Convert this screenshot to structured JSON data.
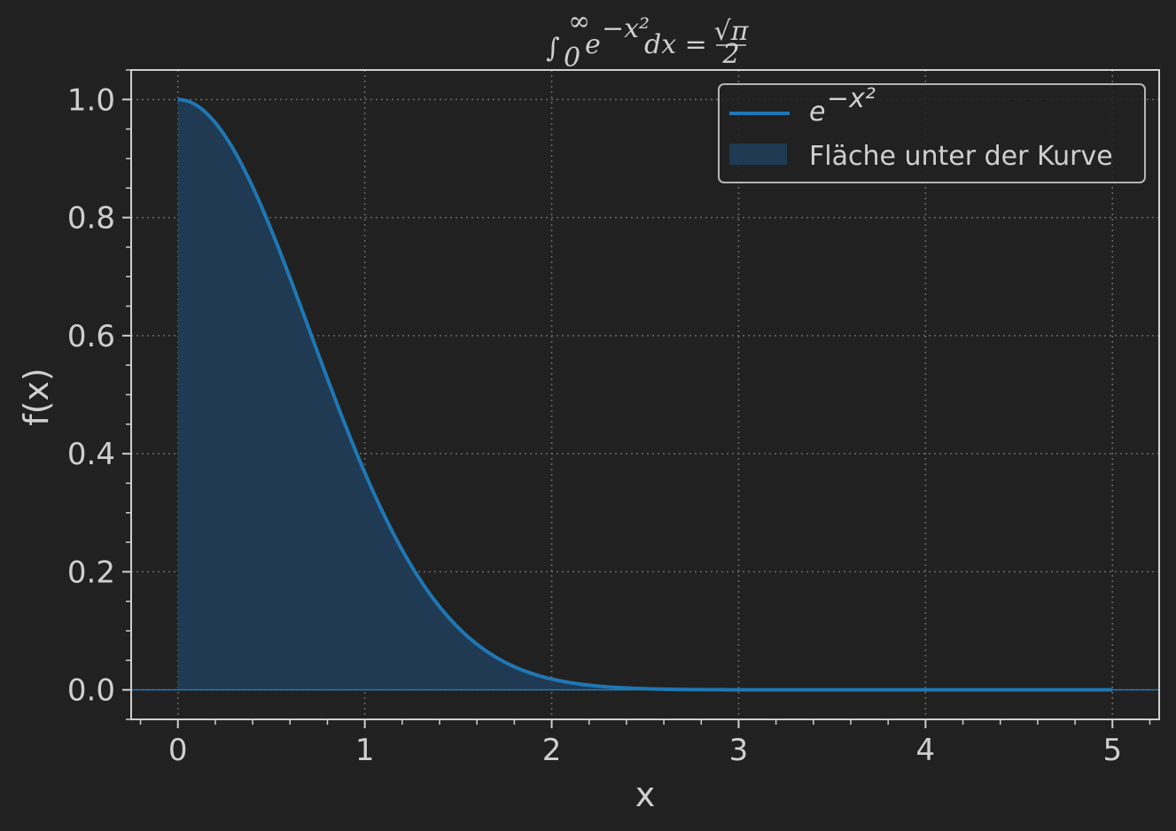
{
  "chart_data": {
    "type": "area",
    "title": {
      "integral_sign": "∫",
      "upper_limit": "∞",
      "lower_limit": "0",
      "base": "e",
      "exponent": "−x²",
      "differential": "dx =",
      "numerator": "√π",
      "denominator": "2"
    },
    "xlabel": "x",
    "ylabel": "f(x)",
    "xlim": [
      -0.25,
      5.25
    ],
    "ylim": [
      -0.05,
      1.05
    ],
    "x_ticks": [
      0,
      1,
      2,
      3,
      4,
      5
    ],
    "x_tick_labels": [
      "0",
      "1",
      "2",
      "3",
      "4",
      "5"
    ],
    "y_ticks": [
      0.0,
      0.2,
      0.4,
      0.6,
      0.8,
      1.0
    ],
    "y_tick_labels": [
      "0.0",
      "0.2",
      "0.4",
      "0.6",
      "0.8",
      "1.0"
    ],
    "grid": true,
    "legend_position": "top-right",
    "legend": {
      "line": {
        "base": "e",
        "exponent": "−x²"
      },
      "area": "Fläche unter der Kurve"
    },
    "series": [
      {
        "kind": "line",
        "x": [
          0,
          0.25,
          0.5,
          0.75,
          1.0,
          1.25,
          1.5,
          1.75,
          2.0,
          2.25,
          2.5,
          2.75,
          3.0,
          3.5,
          4.0,
          4.5,
          5.0
        ],
        "y": [
          1.0,
          0.939,
          0.779,
          0.57,
          0.368,
          0.21,
          0.105,
          0.047,
          0.018,
          0.006,
          0.002,
          0.001,
          0.0,
          0.0,
          0.0,
          0.0,
          0.0
        ]
      },
      {
        "kind": "fill",
        "x_range": [
          0,
          5
        ]
      }
    ],
    "colors": {
      "background": "#212121",
      "line": "#1f77b4",
      "fill": "#1f3a52",
      "axes": "#cfcfcf",
      "grid": "#6a6a6a",
      "text": "#cfcfcf"
    }
  }
}
